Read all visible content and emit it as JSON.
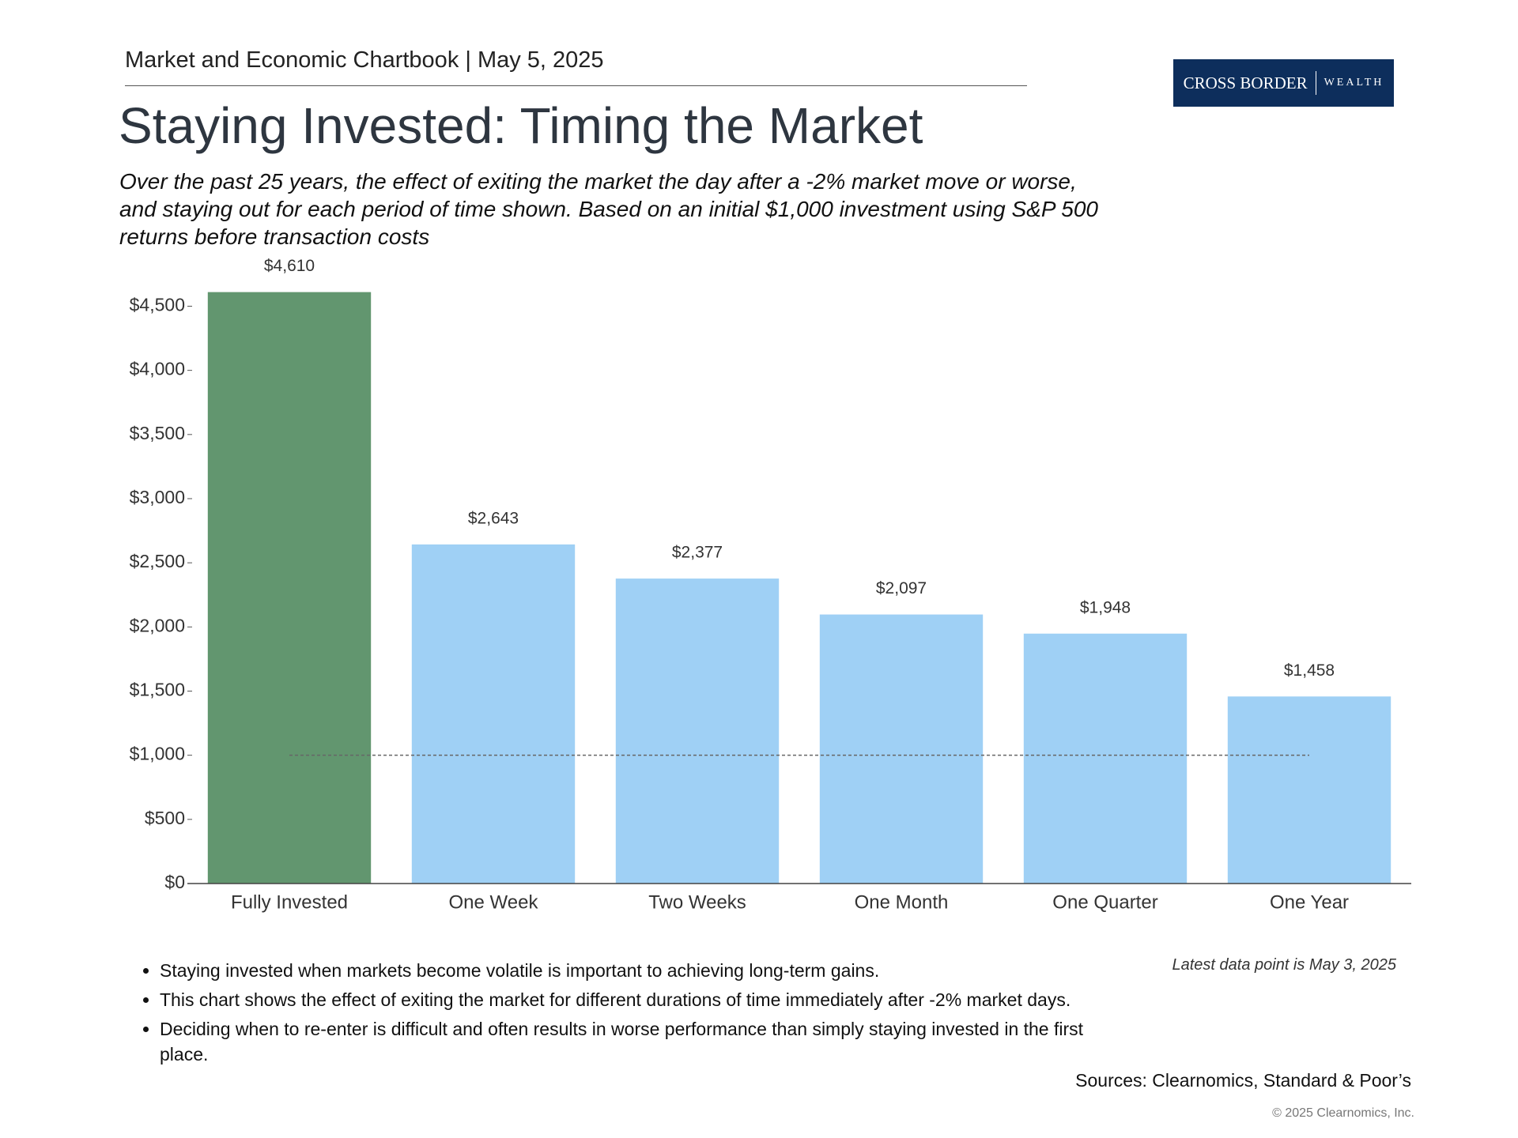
{
  "header": {
    "text": "Market and Economic Chartbook | May 5, 2025"
  },
  "logo": {
    "main": "CROSS BORDER",
    "sub": "WEALTH"
  },
  "chart_data": {
    "type": "bar",
    "title": "Staying Invested: Timing the Market",
    "subtitle": "Over the past 25 years, the effect of exiting the market the day after a -2% market move or worse, and staying out for each period of time shown. Based on an initial $1,000 investment using S&P 500 returns before transaction costs",
    "categories": [
      "Fully Invested",
      "One Week",
      "Two Weeks",
      "One Month",
      "One Quarter",
      "One Year"
    ],
    "values": [
      4610,
      2643,
      2377,
      2097,
      1948,
      1458
    ],
    "value_labels": [
      "$4,610",
      "$2,643",
      "$2,377",
      "$2,097",
      "$1,948",
      "$1,458"
    ],
    "colors": [
      "#62966f",
      "#9fd0f5",
      "#9fd0f5",
      "#9fd0f5",
      "#9fd0f5",
      "#9fd0f5"
    ],
    "ylim": [
      0,
      4700
    ],
    "yticks": [
      {
        "value": 0,
        "label": "$0"
      },
      {
        "value": 500,
        "label": "$500"
      },
      {
        "value": 1000,
        "label": "$1,000"
      },
      {
        "value": 1500,
        "label": "$1,500"
      },
      {
        "value": 2000,
        "label": "$2,000"
      },
      {
        "value": 2500,
        "label": "$2,500"
      },
      {
        "value": 3000,
        "label": "$3,000"
      },
      {
        "value": 3500,
        "label": "$3,500"
      },
      {
        "value": 4000,
        "label": "$4,000"
      },
      {
        "value": 4500,
        "label": "$4,500"
      }
    ],
    "reference_line": 1000,
    "grid": false
  },
  "notes": {
    "bullets": [
      "Staying invested when markets become volatile is important to achieving long-term gains.",
      "This chart shows the effect of exiting the market for different durations of time immediately after -2% market days.",
      "Deciding when to re-enter is difficult and often results in worse performance than simply staying invested in the first place."
    ],
    "latest": "Latest data point is May 3, 2025",
    "sources": "Sources: Clearnomics, Standard & Poor’s",
    "copyright": "© 2025 Clearnomics, Inc."
  }
}
